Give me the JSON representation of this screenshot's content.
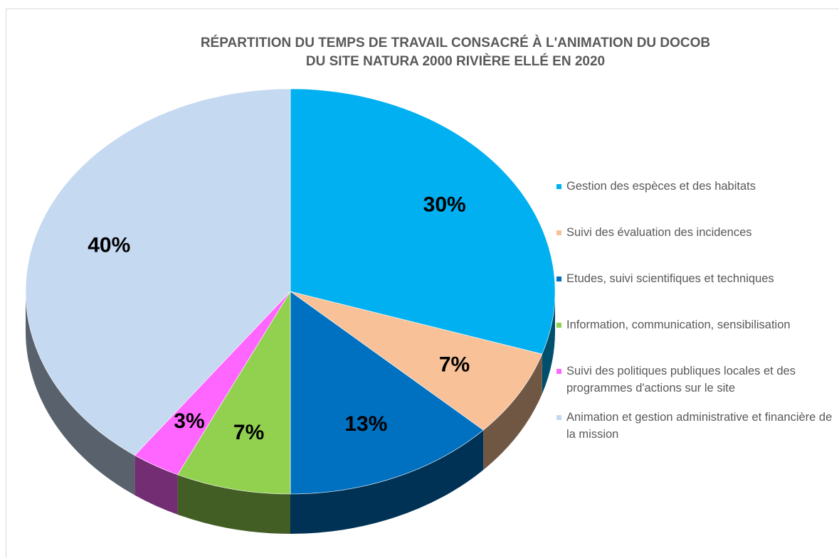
{
  "chart_data": {
    "type": "pie3d",
    "title": [
      "RÉPARTITION DU TEMPS DE TRAVAIL CONSACRÉ À L'ANIMATION DU DOCOB",
      "DU SITE NATURA 2000 RIVIÈRE ELLÉ EN 2020"
    ],
    "categories": [
      "Gestion des espèces et des habitats",
      "Suivi des évaluation des incidences",
      "Etudes, suivi scientifiques et techniques",
      "Information, communication, sensibilisation",
      "Suivi des politiques publiques locales et des programmes d'actions sur le site",
      "Animation et gestion administrative et financière de la mission"
    ],
    "values": [
      30,
      7,
      13,
      7,
      3,
      40
    ],
    "value_labels": [
      "30%",
      "7%",
      "13%",
      "7%",
      "3%",
      "40%"
    ],
    "colors": [
      "#00b0f0",
      "#f8c197",
      "#0070c0",
      "#92d050",
      "#ff66ff",
      "#c5d9f1"
    ],
    "legend": "right"
  }
}
